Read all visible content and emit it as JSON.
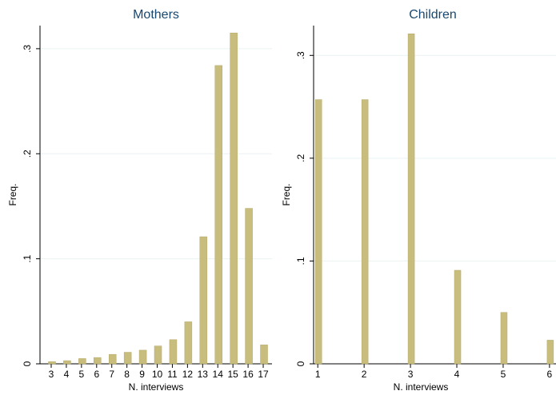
{
  "chart_data": [
    {
      "type": "bar",
      "title": "Mothers",
      "x_label": "N. interviews",
      "y_label": "Freq.",
      "x": [
        3,
        4,
        5,
        6,
        7,
        8,
        9,
        10,
        11,
        12,
        13,
        14,
        15,
        16,
        17
      ],
      "values": [
        0.002,
        0.003,
        0.005,
        0.006,
        0.009,
        0.011,
        0.013,
        0.017,
        0.023,
        0.04,
        0.121,
        0.284,
        0.315,
        0.148,
        0.018
      ],
      "color": "#c8bd7d",
      "xlim": [
        2.26,
        17.58
      ],
      "xticks": [
        3,
        4,
        5,
        6,
        7,
        8,
        9,
        10,
        11,
        12,
        13,
        14,
        15,
        16,
        17
      ],
      "ylim": [
        0,
        0.322
      ],
      "yticks": [
        0,
        {
          "value": 0.1,
          "label": ".1"
        },
        {
          "value": 0.2,
          "label": ".2"
        },
        {
          "value": 0.3,
          "label": ".3"
        }
      ],
      "grid": true
    },
    {
      "type": "bar",
      "title": "Children",
      "x_label": "N. interviews",
      "y_label": "Freq.",
      "x": [
        1,
        2,
        3,
        4,
        5,
        6
      ],
      "values": [
        0.257,
        0.257,
        0.321,
        0.091,
        0.05,
        0.023
      ],
      "color": "#c8bd7d",
      "xlim": [
        0.91,
        6.14
      ],
      "xticks": [
        1,
        2,
        3,
        4,
        5,
        6
      ],
      "ylim": [
        0,
        0.329
      ],
      "yticks": [
        0,
        {
          "value": 0.1,
          "label": ".1"
        },
        {
          "value": 0.2,
          "label": ".2"
        },
        {
          "value": 0.3,
          "label": ".3"
        }
      ],
      "grid": true
    }
  ]
}
